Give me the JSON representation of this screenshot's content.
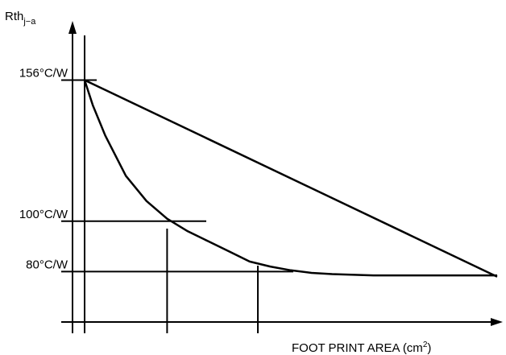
{
  "chart_data": {
    "type": "line",
    "ylabel": {
      "main": "Rth",
      "sub": "j−a"
    },
    "xlabel": {
      "main": "FOOT PRINT AREA (cm",
      "sup": "2",
      "close": ")"
    },
    "yticks": [
      {
        "label": "156°C/W",
        "value": 156
      },
      {
        "label": "100°C/W",
        "value": 100
      },
      {
        "label": "80°C/W",
        "value": 80
      }
    ],
    "xlim": [
      0,
      10
    ],
    "ylim": [
      60,
      175
    ],
    "series": [
      {
        "values": [
          [
            0,
            156
          ],
          [
            10,
            78
          ]
        ]
      },
      {
        "values": [
          [
            0,
            156
          ],
          [
            0.2,
            146
          ],
          [
            0.5,
            134
          ],
          [
            1,
            118
          ],
          [
            1.5,
            108
          ],
          [
            2,
            101
          ],
          [
            2.5,
            96
          ],
          [
            3,
            92
          ],
          [
            3.5,
            88
          ],
          [
            4,
            84
          ],
          [
            4.5,
            82
          ],
          [
            5,
            80.5
          ],
          [
            5.5,
            79.5
          ],
          [
            6,
            79
          ],
          [
            7,
            78.5
          ],
          [
            8,
            78.5
          ],
          [
            9,
            78.5
          ],
          [
            10,
            78.5
          ]
        ]
      }
    ],
    "marker_x": [
      0,
      2.0,
      4.2
    ],
    "grid": false,
    "legend": "none"
  }
}
